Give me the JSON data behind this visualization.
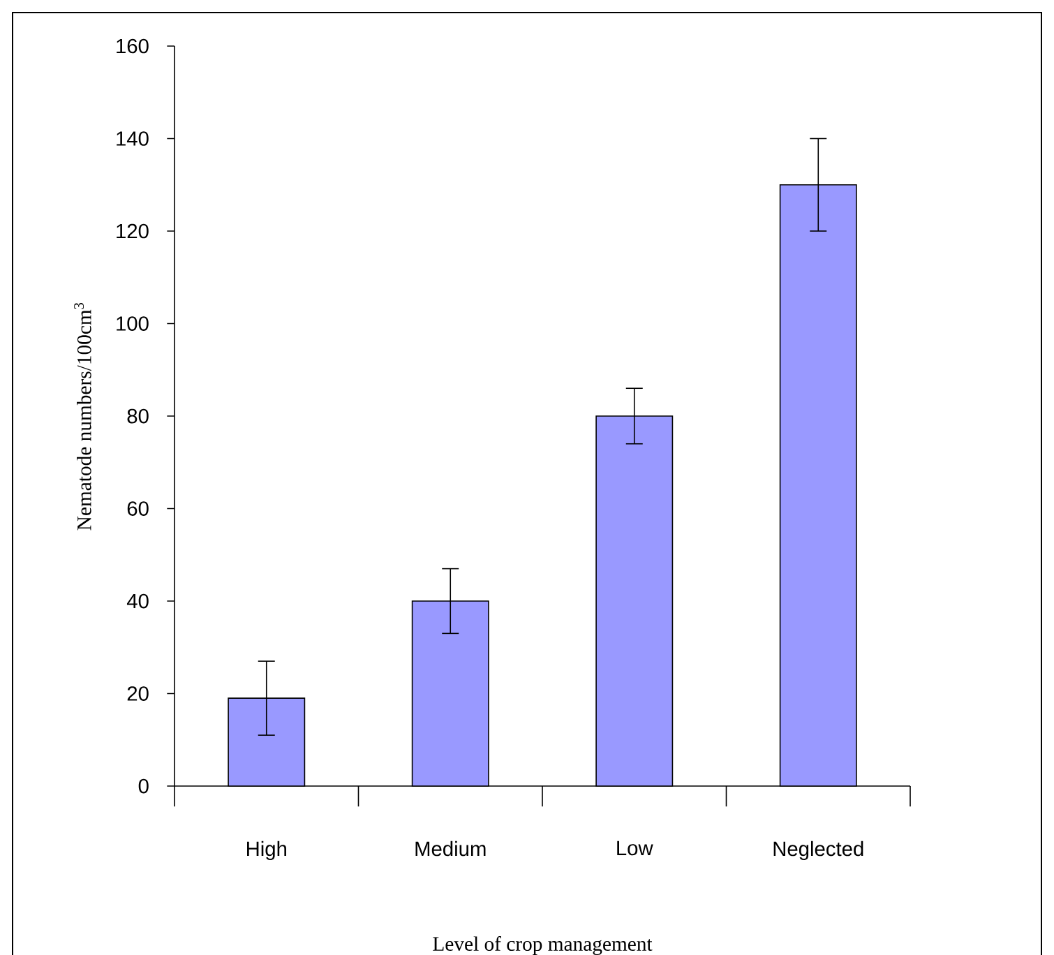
{
  "chart_data": {
    "type": "bar",
    "xlabel": "Level of crop management",
    "ylabel": "Nematode numbers/100cm$^{3}$",
    "categories": [
      "High",
      "Medium",
      "Low",
      "Neglected"
    ],
    "values": [
      19,
      40,
      80,
      130
    ],
    "errors": [
      [
        11,
        27
      ],
      [
        33,
        47
      ],
      [
        74,
        86
      ],
      [
        120,
        140
      ]
    ],
    "color": "#9999ff",
    "ylim": [
      0,
      160
    ],
    "yticks": [
      0,
      20,
      40,
      60,
      80,
      100,
      120,
      140,
      160
    ],
    "grid": false,
    "legend": false
  }
}
